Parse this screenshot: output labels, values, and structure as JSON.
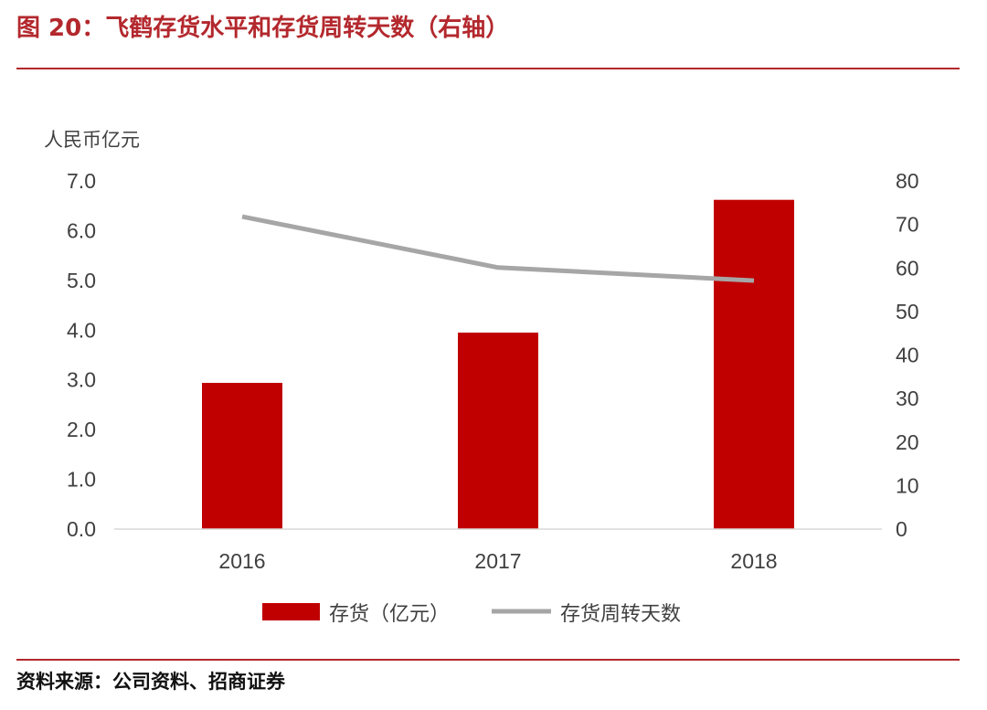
{
  "header": {
    "title": "图 20：飞鹤存货水平和存货周转天数（右轴）"
  },
  "footer": {
    "source": "资料来源：公司资料、招商证券"
  },
  "colors": {
    "bar": "#c00000",
    "line": "#a6a6a6",
    "accent": "#b3282d"
  },
  "chart_data": {
    "type": "bar",
    "title": "飞鹤存货水平和存货周转天数（右轴）",
    "categories": [
      "2016",
      "2017",
      "2018"
    ],
    "ylabel": "人民币亿元",
    "ylim": [
      0,
      7
    ],
    "yticks": [
      "0.0",
      "1.0",
      "2.0",
      "3.0",
      "4.0",
      "5.0",
      "6.0",
      "7.0"
    ],
    "y2lim": [
      0,
      80
    ],
    "y2ticks": [
      "0",
      "10",
      "20",
      "30",
      "40",
      "50",
      "60",
      "70",
      "80"
    ],
    "legend_position": "bottom",
    "grid": false,
    "series": [
      {
        "name": "存货（亿元）",
        "type": "bar",
        "axis": "left",
        "values": [
          2.94,
          3.95,
          6.62
        ]
      },
      {
        "name": "存货周转天数",
        "type": "line",
        "axis": "right",
        "values": [
          71.8,
          60.1,
          57.1
        ]
      }
    ]
  }
}
